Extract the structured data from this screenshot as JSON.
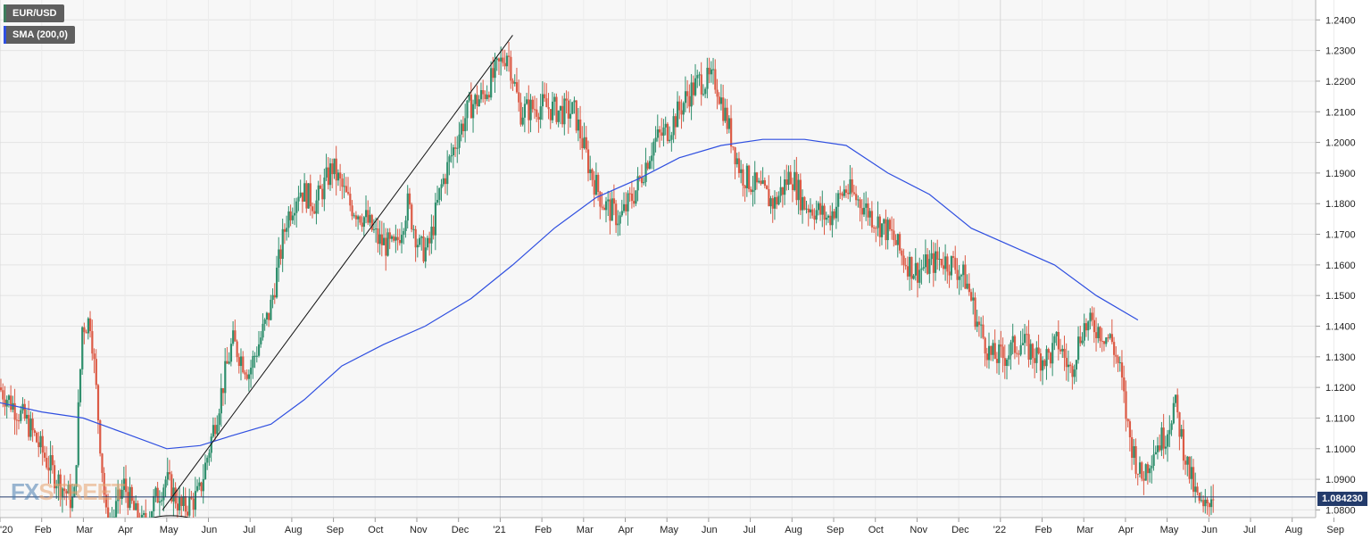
{
  "chart_data": {
    "type": "candlestick",
    "symbol": "EUR/USD",
    "indicator": "SMA (200,0)",
    "last_price": "1.084230",
    "last_price_value": 1.08423,
    "ylim": [
      1.0775,
      1.2465
    ],
    "y_ticks": [
      "1.0800",
      "1.0900",
      "1.1000",
      "1.1100",
      "1.1200",
      "1.1300",
      "1.1400",
      "1.1500",
      "1.1600",
      "1.1700",
      "1.1800",
      "1.1900",
      "1.2000",
      "1.2100",
      "1.2200",
      "1.2300",
      "1.2400"
    ],
    "x_ticks": [
      "'20",
      "Feb",
      "Mar",
      "Apr",
      "May",
      "Jun",
      "Jul",
      "Aug",
      "Sep",
      "Oct",
      "Nov",
      "Dec",
      "'21",
      "Feb",
      "Mar",
      "Apr",
      "May",
      "Jun",
      "Jul",
      "Aug",
      "Sep",
      "Oct",
      "Nov",
      "Dec",
      "'22",
      "Feb",
      "Mar",
      "Apr",
      "May",
      "Jun",
      "Jul",
      "Aug",
      "Sep"
    ],
    "x_range_months": [
      0,
      32.3
    ],
    "price_path": [
      [
        0,
        1.12
      ],
      [
        0.7,
        1.108
      ],
      [
        1.3,
        1.092
      ],
      [
        1.8,
        1.082
      ],
      [
        2.0,
        1.14
      ],
      [
        2.2,
        1.142
      ],
      [
        2.6,
        1.072
      ],
      [
        3.0,
        1.088
      ],
      [
        3.4,
        1.074
      ],
      [
        4.0,
        1.09
      ],
      [
        4.4,
        1.08
      ],
      [
        4.8,
        1.085
      ],
      [
        5.2,
        1.11
      ],
      [
        5.6,
        1.135
      ],
      [
        6.0,
        1.125
      ],
      [
        6.5,
        1.145
      ],
      [
        6.9,
        1.175
      ],
      [
        7.2,
        1.185
      ],
      [
        7.6,
        1.18
      ],
      [
        8.0,
        1.192
      ],
      [
        8.4,
        1.18
      ],
      [
        8.8,
        1.175
      ],
      [
        9.1,
        1.168
      ],
      [
        9.5,
        1.165
      ],
      [
        9.8,
        1.18
      ],
      [
        10.1,
        1.165
      ],
      [
        10.3,
        1.165
      ],
      [
        10.6,
        1.185
      ],
      [
        11.0,
        1.202
      ],
      [
        11.3,
        1.212
      ],
      [
        11.6,
        1.215
      ],
      [
        12.0,
        1.225
      ],
      [
        12.2,
        1.23
      ],
      [
        12.5,
        1.21
      ],
      [
        13.0,
        1.212
      ],
      [
        13.5,
        1.21
      ],
      [
        13.8,
        1.21
      ],
      [
        14.2,
        1.19
      ],
      [
        14.5,
        1.18
      ],
      [
        14.9,
        1.175
      ],
      [
        15.3,
        1.185
      ],
      [
        15.7,
        1.2
      ],
      [
        16.1,
        1.205
      ],
      [
        16.5,
        1.215
      ],
      [
        16.8,
        1.22
      ],
      [
        17.2,
        1.22
      ],
      [
        17.5,
        1.205
      ],
      [
        17.8,
        1.19
      ],
      [
        18.2,
        1.185
      ],
      [
        18.6,
        1.18
      ],
      [
        19.0,
        1.19
      ],
      [
        19.3,
        1.18
      ],
      [
        19.6,
        1.178
      ],
      [
        19.9,
        1.175
      ],
      [
        20.3,
        1.185
      ],
      [
        20.7,
        1.18
      ],
      [
        21.0,
        1.175
      ],
      [
        21.4,
        1.17
      ],
      [
        21.7,
        1.162
      ],
      [
        22.0,
        1.158
      ],
      [
        22.3,
        1.16
      ],
      [
        22.6,
        1.162
      ],
      [
        22.9,
        1.16
      ],
      [
        23.2,
        1.155
      ],
      [
        23.5,
        1.14
      ],
      [
        23.8,
        1.13
      ],
      [
        24.1,
        1.13
      ],
      [
        24.5,
        1.135
      ],
      [
        24.9,
        1.13
      ],
      [
        25.2,
        1.13
      ],
      [
        25.4,
        1.135
      ],
      [
        25.7,
        1.125
      ],
      [
        26.0,
        1.14
      ],
      [
        26.3,
        1.14
      ],
      [
        26.7,
        1.135
      ],
      [
        26.9,
        1.125
      ],
      [
        27.1,
        1.105
      ],
      [
        27.4,
        1.09
      ],
      [
        27.7,
        1.1
      ],
      [
        28.0,
        1.105
      ],
      [
        28.2,
        1.115
      ],
      [
        28.5,
        1.095
      ],
      [
        28.7,
        1.085
      ],
      [
        28.9,
        1.079
      ],
      [
        29.1,
        1.086
      ]
    ],
    "sma_path": [
      [
        0,
        1.115
      ],
      [
        1,
        1.112
      ],
      [
        2,
        1.11
      ],
      [
        3,
        1.105
      ],
      [
        4,
        1.1
      ],
      [
        4.8,
        1.101
      ],
      [
        5.5,
        1.104
      ],
      [
        6.5,
        1.108
      ],
      [
        7.3,
        1.116
      ],
      [
        8.2,
        1.127
      ],
      [
        9.2,
        1.134
      ],
      [
        10.2,
        1.14
      ],
      [
        11.3,
        1.149
      ],
      [
        12.3,
        1.16
      ],
      [
        13.3,
        1.172
      ],
      [
        14.3,
        1.182
      ],
      [
        15.3,
        1.188
      ],
      [
        16.3,
        1.195
      ],
      [
        17.3,
        1.199
      ],
      [
        18.3,
        1.201
      ],
      [
        19.3,
        1.201
      ],
      [
        20.3,
        1.199
      ],
      [
        21.3,
        1.19
      ],
      [
        22.3,
        1.183
      ],
      [
        23.3,
        1.172
      ],
      [
        24.3,
        1.166
      ],
      [
        25.3,
        1.16
      ],
      [
        26.3,
        1.15
      ],
      [
        27.3,
        1.142
      ]
    ],
    "trendline": [
      [
        3.9,
        1.08
      ],
      [
        12.3,
        1.235
      ]
    ],
    "grid": true
  }
}
